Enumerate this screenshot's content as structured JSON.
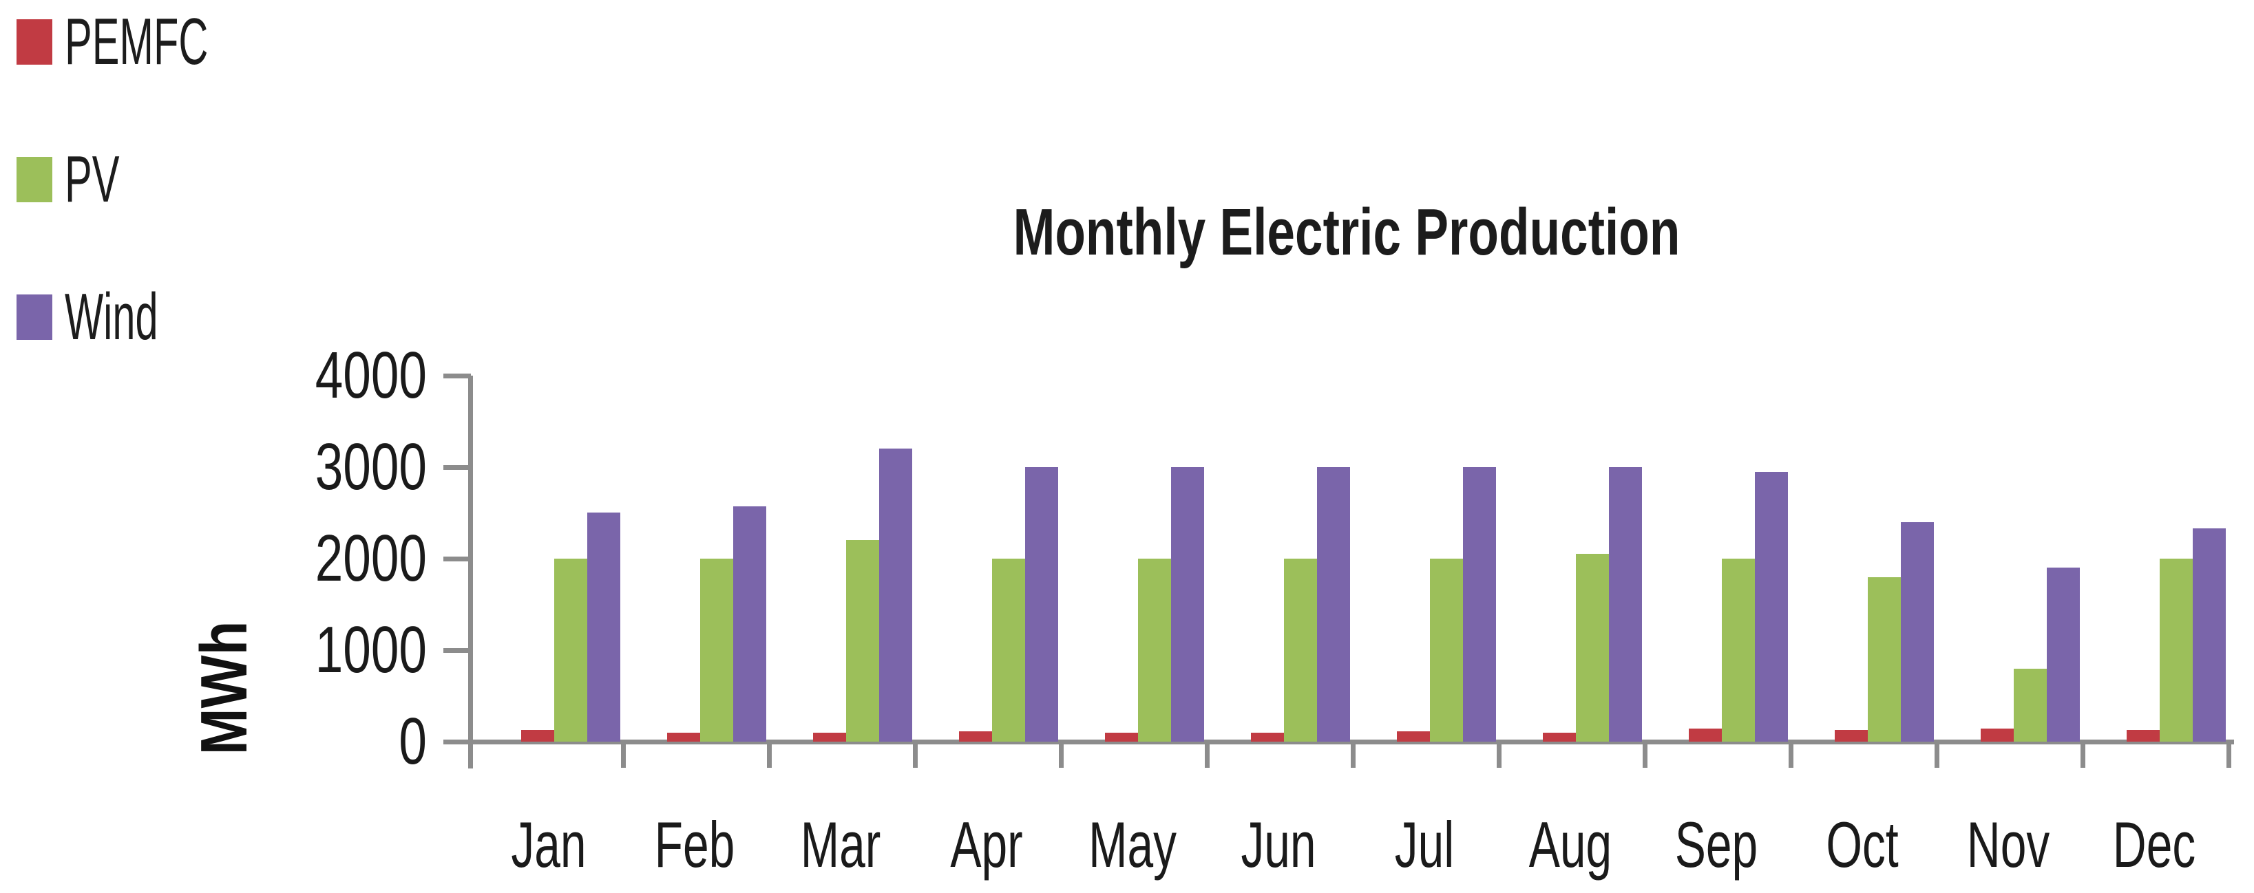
{
  "figure": {
    "title": "Monthly Electric Production",
    "y_axis_unit": "MWh"
  },
  "chart_data": {
    "type": "bar",
    "title": "Monthly Electric Production",
    "xlabel": "",
    "ylabel": "MWh",
    "categories": [
      "Jan",
      "Feb",
      "Mar",
      "Apr",
      "May",
      "Jun",
      "Jul",
      "Aug",
      "Sep",
      "Oct",
      "Nov",
      "Dec"
    ],
    "series": [
      {
        "name": "PEMFC",
        "color": "#c13b43",
        "values": [
          130,
          100,
          100,
          110,
          100,
          100,
          110,
          100,
          140,
          130,
          140,
          130
        ]
      },
      {
        "name": "PV",
        "color": "#9cbf5a",
        "values": [
          2000,
          2000,
          2200,
          2000,
          2000,
          2000,
          2000,
          2050,
          2000,
          1800,
          800,
          2000
        ]
      },
      {
        "name": "Wind",
        "color": "#7a65aa",
        "values": [
          2500,
          2570,
          3200,
          3000,
          3000,
          3000,
          3000,
          3000,
          2950,
          2400,
          1900,
          2330
        ]
      }
    ],
    "ylim": [
      0,
      4000
    ],
    "yticks": [
      0,
      1000,
      2000,
      3000,
      4000
    ],
    "ytick_labels": [
      "0",
      "1000",
      "2000",
      "3000",
      "4000"
    ],
    "grid": false,
    "legend_position": "top-left",
    "axis_color": "#8c8c8c",
    "text_color": "#1a1a1a"
  }
}
